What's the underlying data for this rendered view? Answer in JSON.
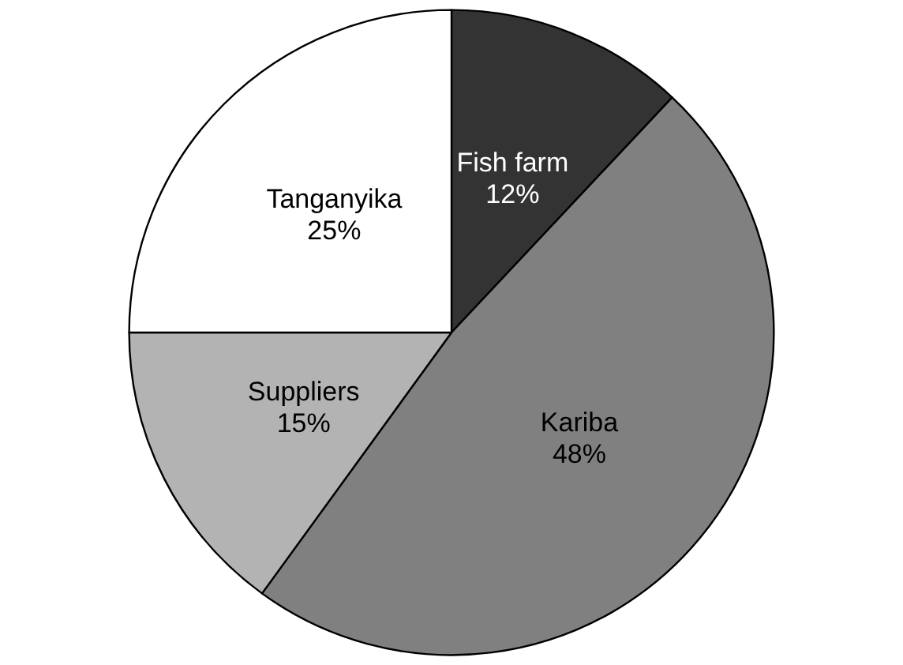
{
  "chart_data": {
    "type": "pie",
    "categories": [
      "Fish farm",
      "Kariba",
      "Suppliers",
      "Tanganyika"
    ],
    "values": [
      12,
      48,
      15,
      25
    ],
    "colors": [
      "#333333",
      "#808080",
      "#b3b3b3",
      "#ffffff"
    ],
    "value_labels": [
      "12%",
      "48%",
      "15%",
      "25%"
    ],
    "legend": false
  }
}
